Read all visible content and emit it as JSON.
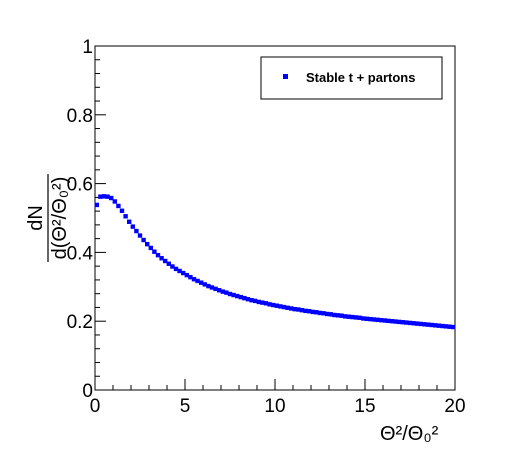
{
  "chart_data": {
    "type": "scatter",
    "xlabel": "Θ²/Θ₀²",
    "ylabel_num": "dN",
    "ylabel_den": "d(Θ²/Θ₀²)",
    "xlim": [
      0,
      20
    ],
    "ylim": [
      0,
      1
    ],
    "x_ticks": [
      0,
      5,
      10,
      15,
      20
    ],
    "y_ticks": [
      0,
      0.2,
      0.4,
      0.6,
      0.8,
      1
    ],
    "x_tick_labels": [
      "0",
      "5",
      "10",
      "15",
      "20"
    ],
    "y_tick_labels": [
      "0",
      "0.2",
      "0.4",
      "0.6",
      "0.8",
      "1"
    ],
    "legend_position": "top-right",
    "series": [
      {
        "name": "Stable t + partons",
        "color": "#0000ff",
        "marker": "square",
        "x": [
          0.1,
          0.3,
          0.5,
          0.7,
          0.9,
          1.1,
          1.3,
          1.5,
          1.7,
          1.9,
          2.1,
          2.3,
          2.5,
          2.7,
          2.9,
          3.1,
          3.3,
          3.5,
          3.7,
          3.9,
          4.1,
          4.3,
          4.5,
          4.7,
          4.9,
          5.1,
          5.3,
          5.5,
          5.7,
          5.9,
          6.1,
          6.3,
          6.5,
          6.7,
          6.9,
          7.1,
          7.3,
          7.5,
          7.7,
          7.9,
          8.1,
          8.3,
          8.5,
          8.7,
          8.9,
          9.1,
          9.3,
          9.5,
          9.7,
          9.9,
          10.1,
          10.3,
          10.5,
          10.7,
          10.9,
          11.1,
          11.3,
          11.5,
          11.7,
          11.9,
          12.1,
          12.3,
          12.5,
          12.7,
          12.9,
          13.1,
          13.3,
          13.5,
          13.7,
          13.9,
          14.1,
          14.3,
          14.5,
          14.7,
          14.9,
          15.1,
          15.3,
          15.5,
          15.7,
          15.9,
          16.1,
          16.3,
          16.5,
          16.7,
          16.9,
          17.1,
          17.3,
          17.5,
          17.7,
          17.9,
          18.1,
          18.3,
          18.5,
          18.7,
          18.9,
          19.1,
          19.3,
          19.5,
          19.7,
          19.9
        ],
        "y": [
          0.538,
          0.562,
          0.563,
          0.562,
          0.558,
          0.548,
          0.535,
          0.521,
          0.505,
          0.489,
          0.475,
          0.462,
          0.449,
          0.436,
          0.424,
          0.413,
          0.402,
          0.392,
          0.383,
          0.375,
          0.367,
          0.359,
          0.352,
          0.346,
          0.34,
          0.334,
          0.328,
          0.322,
          0.317,
          0.312,
          0.307,
          0.302,
          0.298,
          0.294,
          0.29,
          0.286,
          0.283,
          0.279,
          0.276,
          0.273,
          0.27,
          0.267,
          0.264,
          0.261,
          0.259,
          0.256,
          0.254,
          0.252,
          0.249,
          0.247,
          0.245,
          0.243,
          0.241,
          0.239,
          0.237,
          0.235,
          0.234,
          0.232,
          0.23,
          0.229,
          0.227,
          0.226,
          0.224,
          0.223,
          0.221,
          0.22,
          0.218,
          0.217,
          0.216,
          0.214,
          0.213,
          0.212,
          0.211,
          0.21,
          0.208,
          0.207,
          0.206,
          0.205,
          0.204,
          0.203,
          0.202,
          0.201,
          0.2,
          0.199,
          0.198,
          0.197,
          0.196,
          0.195,
          0.194,
          0.193,
          0.192,
          0.191,
          0.19,
          0.189,
          0.188,
          0.187,
          0.186,
          0.185,
          0.184,
          0.183
        ]
      }
    ]
  }
}
